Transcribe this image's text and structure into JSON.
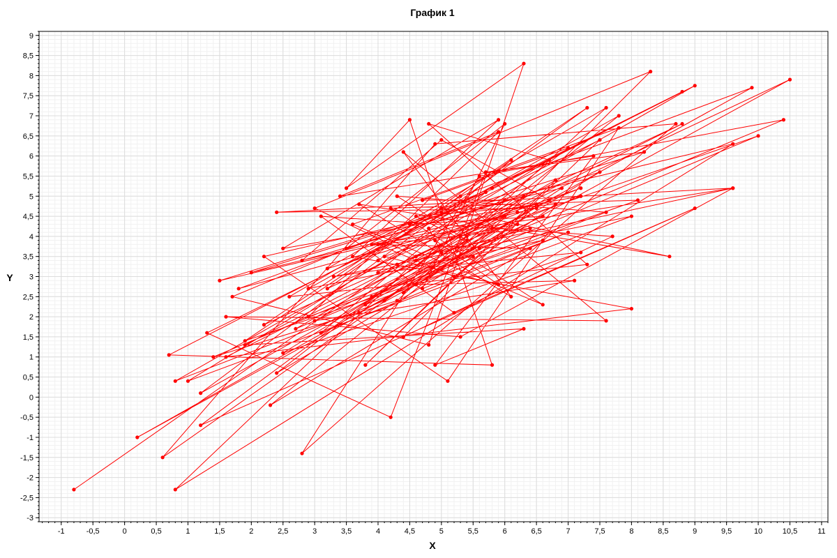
{
  "chart_data": {
    "type": "line",
    "title": "График 1",
    "xlabel": "X",
    "ylabel": "Y",
    "xlim": [
      -1.35,
      11.1
    ],
    "ylim": [
      -3.1,
      9.1
    ],
    "grid": true,
    "marker": "circle",
    "series_color": "#ff0000",
    "x_ticks": [
      "-1",
      "-0,5",
      "0",
      "0,5",
      "1",
      "1,5",
      "2",
      "2,5",
      "3",
      "3,5",
      "4",
      "4,5",
      "5",
      "5,5",
      "6",
      "6,5",
      "7",
      "7,5",
      "8",
      "8,5",
      "9",
      "9,5",
      "10",
      "10,5",
      "11"
    ],
    "y_ticks": [
      "-3",
      "-2,5",
      "-2",
      "-1,5",
      "-1",
      "-0,5",
      "0",
      "0,5",
      "1",
      "1,5",
      "2",
      "2,5",
      "3",
      "3,5",
      "4",
      "4,5",
      "5",
      "5,5",
      "6",
      "6,5",
      "7",
      "7,5",
      "8",
      "8,5",
      "9"
    ],
    "points": [
      [
        -0.8,
        -2.3
      ],
      [
        4.3,
        3.3
      ],
      [
        10.5,
        7.9
      ],
      [
        0.2,
        -1.0
      ],
      [
        5.5,
        3.7
      ],
      [
        8.3,
        8.1
      ],
      [
        3.0,
        4.7
      ],
      [
        4.6,
        3.5
      ],
      [
        9.6,
        5.2
      ],
      [
        2.4,
        4.6
      ],
      [
        6.5,
        4.7
      ],
      [
        1.5,
        2.9
      ],
      [
        5.0,
        4.6
      ],
      [
        8.8,
        7.6
      ],
      [
        0.7,
        1.05
      ],
      [
        5.8,
        0.8
      ],
      [
        4.5,
        6.9
      ],
      [
        3.5,
        5.2
      ],
      [
        6.3,
        8.3
      ],
      [
        4.8,
        1.3
      ],
      [
        1.7,
        2.5
      ],
      [
        5.8,
        5.2
      ],
      [
        9.0,
        7.75
      ],
      [
        0.8,
        0.4
      ],
      [
        4.1,
        2.4
      ],
      [
        7.8,
        7.0
      ],
      [
        2.9,
        2.7
      ],
      [
        6.6,
        3.9
      ],
      [
        1.9,
        1.4
      ],
      [
        5.3,
        5.0
      ],
      [
        9.9,
        7.7
      ],
      [
        1.2,
        0.1
      ],
      [
        4.0,
        3.4
      ],
      [
        7.3,
        7.2
      ],
      [
        2.2,
        1.8
      ],
      [
        6.0,
        4.5
      ],
      [
        0.6,
        -1.5
      ],
      [
        4.9,
        6.3
      ],
      [
        8.7,
        6.8
      ],
      [
        2.8,
        -1.4
      ],
      [
        5.6,
        5.5
      ],
      [
        10.4,
        6.9
      ],
      [
        1.4,
        1.0
      ],
      [
        4.3,
        2.4
      ],
      [
        7.6,
        7.2
      ],
      [
        3.2,
        3.2
      ],
      [
        6.2,
        4.6
      ],
      [
        1.8,
        2.7
      ],
      [
        5.1,
        4.6
      ],
      [
        9.6,
        6.3
      ],
      [
        0.8,
        -2.3
      ],
      [
        4.6,
        3.4
      ],
      [
        7.2,
        5.0
      ],
      [
        2.5,
        3.7
      ],
      [
        5.9,
        6.9
      ],
      [
        3.6,
        3.5
      ],
      [
        8.0,
        2.2
      ],
      [
        1.6,
        1.0
      ],
      [
        5.4,
        4.0
      ],
      [
        10.0,
        6.5
      ],
      [
        2.7,
        1.7
      ],
      [
        6.8,
        5.4
      ],
      [
        3.8,
        0.8
      ],
      [
        7.5,
        6.4
      ],
      [
        1.3,
        1.6
      ],
      [
        4.2,
        -0.5
      ],
      [
        5.7,
        5.6
      ],
      [
        8.2,
        6.1
      ],
      [
        2.0,
        3.1
      ],
      [
        6.5,
        4.8
      ],
      [
        4.4,
        1.5
      ],
      [
        7.7,
        4.0
      ],
      [
        3.1,
        4.5
      ],
      [
        5.2,
        2.1
      ],
      [
        9.0,
        4.7
      ],
      [
        1.2,
        -0.7
      ],
      [
        6.0,
        4.9
      ],
      [
        4.7,
        4.9
      ],
      [
        7.0,
        6.2
      ],
      [
        2.4,
        0.6
      ],
      [
        5.5,
        3.5
      ],
      [
        3.3,
        3.0
      ],
      [
        8.0,
        4.5
      ],
      [
        1.0,
        0.4
      ],
      [
        6.7,
        5.9
      ],
      [
        4.8,
        6.8
      ],
      [
        7.3,
        3.3
      ],
      [
        2.6,
        2.5
      ],
      [
        5.0,
        4.7
      ],
      [
        8.6,
        3.5
      ],
      [
        3.7,
        4.8
      ],
      [
        6.1,
        2.5
      ],
      [
        4.4,
        6.1
      ],
      [
        7.6,
        1.9
      ],
      [
        1.6,
        2.0
      ],
      [
        5.3,
        1.5
      ],
      [
        9.6,
        5.2
      ],
      [
        3.9,
        3.8
      ],
      [
        6.4,
        3.7
      ],
      [
        2.3,
        -0.2
      ],
      [
        5.8,
        4.2
      ],
      [
        3.0,
        1.9
      ],
      [
        7.1,
        2.9
      ],
      [
        4.6,
        2.8
      ],
      [
        6.9,
        5.2
      ],
      [
        2.2,
        3.5
      ],
      [
        5.1,
        0.4
      ],
      [
        7.8,
        6.7
      ],
      [
        3.6,
        4.3
      ],
      [
        6.6,
        2.3
      ],
      [
        4.2,
        4.7
      ],
      [
        8.1,
        4.9
      ],
      [
        2.9,
        2.0
      ],
      [
        5.9,
        6.6
      ],
      [
        3.4,
        5.0
      ],
      [
        7.4,
        6.0
      ],
      [
        4.9,
        0.8
      ],
      [
        6.3,
        1.7
      ],
      [
        1.9,
        1.3
      ],
      [
        5.6,
        4.3
      ],
      [
        8.8,
        6.8
      ],
      [
        3.2,
        2.7
      ],
      [
        6.1,
        5.9
      ],
      [
        4.0,
        3.1
      ],
      [
        7.2,
        3.6
      ],
      [
        2.5,
        1.1
      ],
      [
        5.4,
        3.9
      ],
      [
        4.3,
        5.0
      ],
      [
        7.6,
        4.6
      ],
      [
        3.8,
        2.3
      ],
      [
        6.7,
        4.9
      ],
      [
        5.0,
        6.4
      ],
      [
        2.8,
        3.4
      ],
      [
        6.3,
        5.0
      ],
      [
        4.4,
        2.6
      ],
      [
        7.5,
        5.6
      ],
      [
        3.5,
        3.7
      ],
      [
        6.0,
        6.8
      ],
      [
        4.7,
        2.7
      ],
      [
        7.0,
        4.1
      ],
      [
        3.1,
        1.6
      ],
      [
        5.7,
        5.1
      ],
      [
        4.5,
        4.3
      ],
      [
        6.6,
        4.5
      ],
      [
        3.9,
        2.5
      ],
      [
        5.3,
        4.0
      ],
      [
        7.2,
        5.2
      ],
      [
        4.1,
        3.5
      ],
      [
        5.9,
        2.8
      ],
      [
        4.9,
        3.9
      ],
      [
        6.2,
        4.3
      ],
      [
        3.7,
        2.1
      ],
      [
        5.6,
        3.7
      ],
      [
        4.6,
        4.5
      ],
      [
        6.8,
        4.8
      ],
      [
        5.2,
        3.0
      ],
      [
        4.0,
        3.8
      ],
      [
        6.4,
        4.2
      ],
      [
        5.0,
        3.6
      ],
      [
        4.8,
        4.2
      ]
    ]
  }
}
